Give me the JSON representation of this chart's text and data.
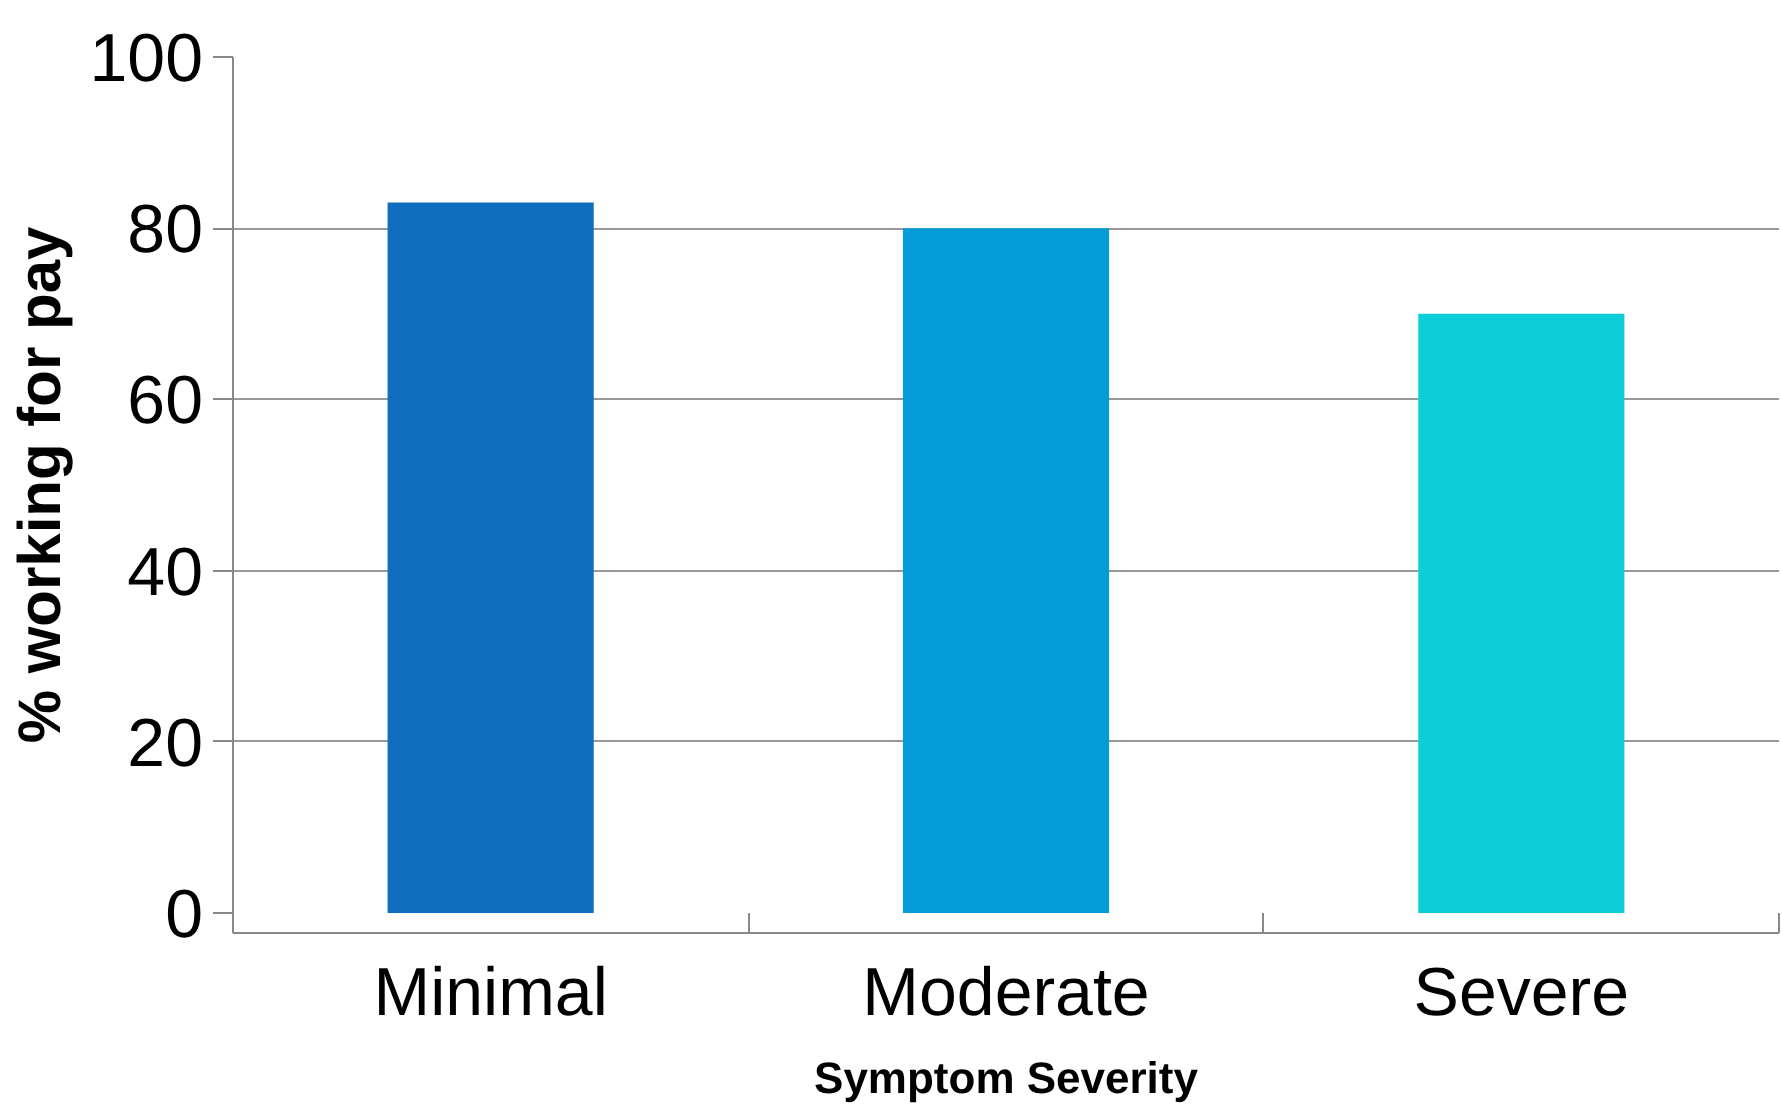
{
  "chart_data": {
    "type": "bar",
    "xlabel": "Symptom Severity",
    "ylabel": "% working for pay",
    "categories": [
      "Minimal",
      "Moderate",
      "Severe"
    ],
    "values": [
      83,
      80,
      70
    ],
    "colors": [
      "#106ebe",
      "#049cd8",
      "#0cced8"
    ],
    "ylim": [
      0,
      100
    ],
    "yticks": [
      0,
      20,
      40,
      60,
      80,
      100
    ],
    "grid": "y"
  }
}
